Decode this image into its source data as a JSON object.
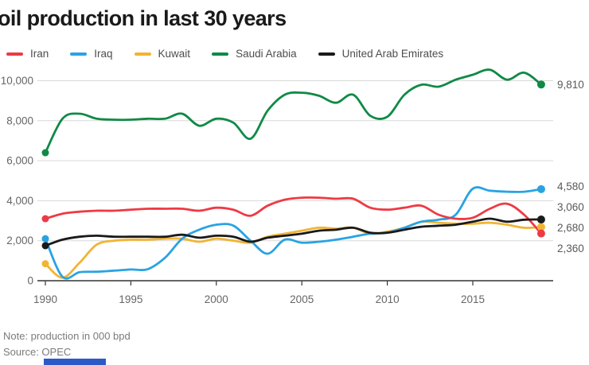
{
  "title": "oil production in last 30 years",
  "note": "Note: production in 000 bpd",
  "source": "Source: OPEC",
  "colors": {
    "grid": "#d9d9d9",
    "axis": "#333333",
    "tick_label": "#666666",
    "end_label": "#595959",
    "brand_bar": "#2d59c7"
  },
  "chart_data": {
    "type": "line",
    "title": "oil production in last 30 years",
    "x": [
      1990,
      1991,
      1992,
      1993,
      1994,
      1995,
      1996,
      1997,
      1998,
      1999,
      2000,
      2001,
      2002,
      2003,
      2004,
      2005,
      2006,
      2007,
      2008,
      2009,
      2010,
      2011,
      2012,
      2013,
      2014,
      2015,
      2016,
      2017,
      2018,
      2019
    ],
    "x_ticks": [
      1990,
      1995,
      2000,
      2005,
      2010,
      2015
    ],
    "x_tick_labels": [
      "1990",
      "1995",
      "2000",
      "2005",
      "2010",
      "2015"
    ],
    "y_ticks": [
      0,
      2000,
      4000,
      6000,
      8000,
      10000
    ],
    "y_tick_labels": [
      "0",
      "2,000",
      "4,000",
      "6,000",
      "8,000",
      "10,000"
    ],
    "ylim": [
      0,
      10000
    ],
    "grid": true,
    "legend_position": "top",
    "units": "000 bpd",
    "series": [
      {
        "name": "Iran",
        "color": "#ee3a43",
        "end_label": "2,360",
        "values": [
          3100,
          3350,
          3450,
          3500,
          3500,
          3550,
          3600,
          3600,
          3600,
          3500,
          3650,
          3550,
          3250,
          3750,
          4050,
          4150,
          4150,
          4100,
          4100,
          3650,
          3550,
          3650,
          3750,
          3300,
          3100,
          3150,
          3600,
          3850,
          3300,
          2360
        ]
      },
      {
        "name": "Iraq",
        "color": "#29a3e3",
        "end_label": "4,580",
        "values": [
          2100,
          200,
          425,
          450,
          500,
          560,
          580,
          1150,
          2100,
          2550,
          2800,
          2750,
          2000,
          1350,
          2050,
          1900,
          1950,
          2050,
          2200,
          2350,
          2400,
          2650,
          2950,
          3050,
          3300,
          4600,
          4500,
          4450,
          4450,
          4580
        ]
      },
      {
        "name": "Kuwait",
        "color": "#f1b434",
        "end_label": "2,680",
        "values": [
          850,
          150,
          900,
          1800,
          2000,
          2050,
          2050,
          2100,
          2100,
          1950,
          2100,
          2000,
          1900,
          2200,
          2350,
          2500,
          2650,
          2600,
          2650,
          2350,
          2450,
          2650,
          2950,
          2900,
          2850,
          2850,
          2900,
          2800,
          2650,
          2680
        ]
      },
      {
        "name": "Saudi Arabia",
        "color": "#108a46",
        "end_label": "9,810",
        "values": [
          6400,
          8100,
          8350,
          8100,
          8050,
          8050,
          8100,
          8100,
          8350,
          7750,
          8100,
          7900,
          7100,
          8500,
          9300,
          9400,
          9250,
          8900,
          9300,
          8250,
          8200,
          9300,
          9800,
          9700,
          10050,
          10300,
          10550,
          10050,
          10400,
          9810
        ]
      },
      {
        "name": "United Arab Emirates",
        "color": "#1a1a1a",
        "end_label": "3,060",
        "values": [
          1750,
          2050,
          2200,
          2250,
          2200,
          2200,
          2200,
          2200,
          2300,
          2150,
          2250,
          2200,
          1950,
          2150,
          2250,
          2350,
          2500,
          2550,
          2650,
          2400,
          2400,
          2550,
          2700,
          2750,
          2800,
          2950,
          3100,
          2950,
          3050,
          3060
        ]
      }
    ]
  }
}
